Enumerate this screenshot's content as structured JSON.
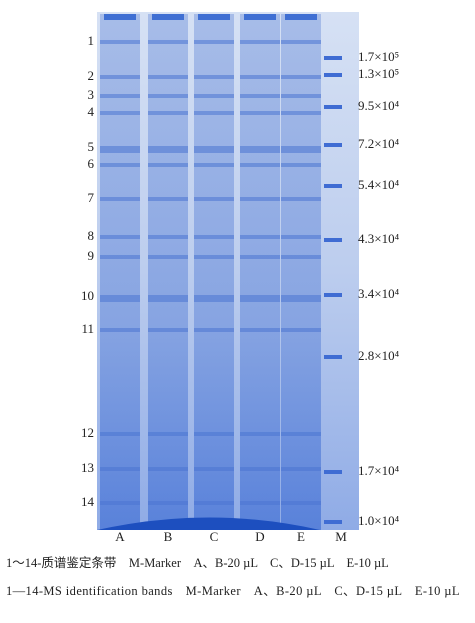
{
  "figure": {
    "band_numbers": [
      "1",
      "2",
      "3",
      "4",
      "5",
      "6",
      "7",
      "8",
      "9",
      "10",
      "11",
      "12",
      "13",
      "14"
    ],
    "lanes": [
      "A",
      "B",
      "C",
      "D",
      "E",
      "M"
    ],
    "marker_labels": [
      "1.7×10⁵",
      "1.3×10⁵",
      "9.5×10⁴",
      "7.2×10⁴",
      "5.4×10⁴",
      "4.3×10⁴",
      "3.4×10⁴",
      "2.8×10⁴",
      "1.7×10⁴",
      "1.0×10⁴"
    ],
    "caption_zh": "1～14-质谱鉴定条带　M-Marker　A、B-20 µL　C、D-15 µL　E-10 µL",
    "caption_en": "1—14-MS identification bands　M-Marker　A、B-20 µL　C、D-15 µL　E-10 µL"
  }
}
